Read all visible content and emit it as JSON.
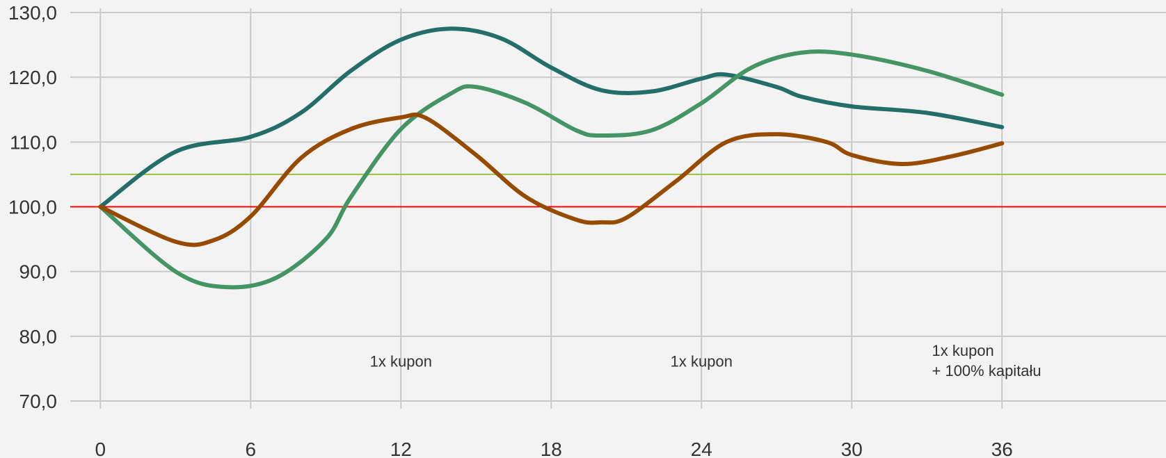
{
  "chart_data": {
    "type": "line",
    "title": "",
    "xlabel": "",
    "ylabel": "",
    "xlim": [
      0,
      42
    ],
    "ylim": [
      70,
      130
    ],
    "grid": true,
    "x_ticks": [
      0,
      6,
      12,
      18,
      24,
      30,
      36
    ],
    "x_tick_labels": [
      "0",
      "6",
      "12",
      "18",
      "24",
      "30",
      "36"
    ],
    "y_ticks": [
      70,
      80,
      90,
      100,
      110,
      120,
      130
    ],
    "y_tick_labels": [
      "70,0",
      "80,0",
      "90,0",
      "100,0",
      "110,0",
      "120,0",
      "130,0"
    ],
    "reference_lines": [
      {
        "name": "baseline",
        "y": 100,
        "color": "#ff0000"
      },
      {
        "name": "barrier",
        "y": 105,
        "color": "#9cbe40"
      }
    ],
    "series": [
      {
        "name": "series-teal",
        "color": "#236e68",
        "x": [
          0,
          3,
          6,
          8,
          10,
          12,
          14,
          16,
          18,
          20,
          22,
          24,
          25,
          27,
          28,
          30,
          33,
          36
        ],
        "y": [
          100,
          108.5,
          110.8,
          114.5,
          121,
          125.8,
          127.5,
          126,
          121.5,
          118,
          117.8,
          119.8,
          120.4,
          118.5,
          117,
          115.5,
          114.5,
          112.3
        ]
      },
      {
        "name": "series-green",
        "color": "#449464",
        "x": [
          0,
          3,
          5,
          7,
          9,
          10,
          12,
          14,
          15,
          17,
          19,
          20,
          22,
          24,
          26,
          28,
          30,
          33,
          36
        ],
        "y": [
          100,
          90,
          87.6,
          89,
          95,
          101.5,
          112,
          117.5,
          118.5,
          116,
          111.8,
          111,
          111.8,
          116,
          121.5,
          123.8,
          123.5,
          121,
          117.3
        ]
      },
      {
        "name": "series-brown",
        "color": "#964b00",
        "x": [
          0,
          3,
          4.5,
          6,
          8,
          10,
          12,
          13,
          15,
          17,
          19,
          20,
          21,
          23,
          25,
          27,
          29,
          30,
          32,
          34,
          36
        ],
        "y": [
          100,
          94.6,
          94.8,
          98.5,
          107.5,
          112,
          113.8,
          113.7,
          108,
          101.5,
          98,
          97.6,
          98.3,
          104,
          110,
          111.2,
          110,
          108,
          106.6,
          107.8,
          109.8
        ]
      }
    ],
    "annotations": [
      {
        "x": 12,
        "y": 75.3,
        "lines": [
          "1x kupon"
        ],
        "align": "middle"
      },
      {
        "x": 24,
        "y": 75.3,
        "lines": [
          "1x kupon"
        ],
        "align": "middle"
      },
      {
        "x": 33.2,
        "y": 77,
        "lines": [
          "1x kupon",
          "+ 100% kapitału"
        ],
        "align": "start"
      }
    ]
  }
}
